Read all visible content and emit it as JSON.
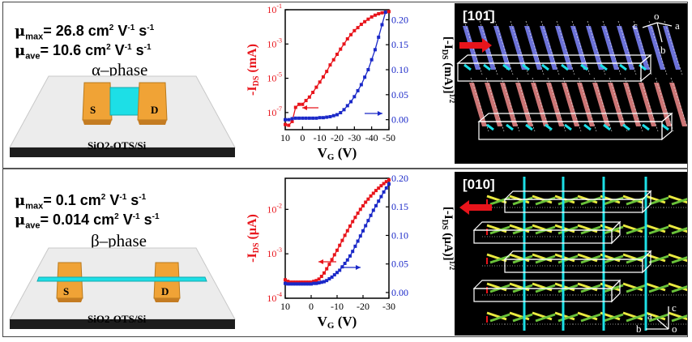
{
  "panels": [
    {
      "id": "alpha",
      "mobility_max": {
        "prefix": "μ",
        "sub": "max",
        "value": "= 26.8 cm",
        "exp": "2",
        "unit": " V",
        "unit_exp": "-1",
        "unit2": " s",
        "unit2_exp": "-1"
      },
      "mobility_ave": {
        "prefix": "μ",
        "sub": "ave",
        "value": "= 10.6 cm",
        "exp": "2",
        "unit": " V",
        "unit_exp": "-1",
        "unit2": " s",
        "unit2_exp": "-1"
      },
      "phase": "α–phase",
      "source": "S",
      "drain": "D",
      "substrate": "SiO2-OTS/Si",
      "direction": "[101̄]",
      "axes": {
        "c": "c",
        "o": "o",
        "a": "a",
        "b": "b"
      },
      "chart_data": {
        "type": "line",
        "xlabel": "VG (V)",
        "ylabel_left": "-IDS (mA)",
        "ylabel_right": "[-IDS (mA)]1/2",
        "x_ticks": [
          "10",
          "0",
          "-10",
          "-20",
          "-30",
          "-40",
          "-50"
        ],
        "xlim": [
          10,
          -50
        ],
        "yleft_scale": "log",
        "yleft_lim": [
          1e-08,
          0.1
        ],
        "yleft_ticks": [
          {
            "base": "10",
            "exp": "-7",
            "v": 1e-07
          },
          {
            "base": "10",
            "exp": "-5",
            "v": 1e-05
          },
          {
            "base": "10",
            "exp": "-3",
            "v": 0.001
          },
          {
            "base": "10",
            "exp": "-1",
            "v": 0.1
          }
        ],
        "yright_lim": [
          -0.02,
          0.22
        ],
        "yright_ticks": [
          "0.00",
          "0.05",
          "0.10",
          "0.15",
          "0.20"
        ],
        "series": [
          {
            "name": "-IDS (log)",
            "axis": "left",
            "color": "#e8141b",
            "x": [
              10,
              8,
              6,
              4,
              2,
              0,
              -2,
              -4,
              -6,
              -8,
              -10,
              -12,
              -14,
              -16,
              -18,
              -20,
              -22,
              -24,
              -26,
              -28,
              -30,
              -32,
              -34,
              -36,
              -38,
              -40,
              -42,
              -44,
              -46,
              -48,
              -50
            ],
            "y": [
              2e-08,
              1.8e-08,
              3e-08,
              2e-07,
              3e-07,
              3e-07,
              5e-07,
              8e-07,
              1.5e-06,
              3e-06,
              6e-06,
              1.2e-05,
              2.5e-05,
              6e-05,
              0.00012,
              0.00025,
              0.0005,
              0.001,
              0.002,
              0.0035,
              0.006,
              0.009,
              0.014,
              0.02,
              0.028,
              0.038,
              0.048,
              0.058,
              0.066,
              0.072,
              0.078
            ]
          },
          {
            "name": "sqrt(-IDS)",
            "axis": "right",
            "color": "#1a28c8",
            "x": [
              10,
              8,
              6,
              4,
              2,
              0,
              -2,
              -4,
              -6,
              -8,
              -10,
              -12,
              -14,
              -16,
              -18,
              -20,
              -22,
              -24,
              -26,
              -28,
              -30,
              -32,
              -34,
              -36,
              -38,
              -40,
              -42,
              -44,
              -46,
              -48
            ],
            "y": [
              0.0,
              0.0,
              0.002,
              0.003,
              0.003,
              0.003,
              0.003,
              0.003,
              0.003,
              0.003,
              0.004,
              0.004,
              0.005,
              0.006,
              0.008,
              0.01,
              0.014,
              0.02,
              0.028,
              0.036,
              0.046,
              0.058,
              0.07,
              0.085,
              0.1,
              0.12,
              0.14,
              0.165,
              0.19,
              0.215
            ]
          }
        ],
        "annotations": [
          "arrow-left pointing to left axis",
          "arrow-right pointing to right axis"
        ]
      }
    },
    {
      "id": "beta",
      "mobility_max": {
        "prefix": "μ",
        "sub": "max",
        "value": "= 0.1 cm",
        "exp": "2",
        "unit": " V",
        "unit_exp": "-1",
        "unit2": " s",
        "unit2_exp": "-1"
      },
      "mobility_ave": {
        "prefix": "μ",
        "sub": "ave",
        "value": "= 0.014 cm",
        "exp": "2",
        "unit": " V",
        "unit_exp": "-1",
        "unit2": " s",
        "unit2_exp": "-1"
      },
      "phase": "β–phase",
      "source": "S",
      "drain": "D",
      "substrate": "SiO2-OTS/Si",
      "direction": "[010]",
      "axes": {
        "c": "c",
        "o": "o",
        "a": "a",
        "b": "b"
      },
      "chart_data": {
        "type": "line",
        "xlabel": "VG (V)",
        "ylabel_left": "-IDS (μA)",
        "ylabel_right": "[-IDS (μA)]1/2",
        "x_ticks": [
          "10",
          "0",
          "-10",
          "-20",
          "-30"
        ],
        "xlim": [
          10,
          -30
        ],
        "yleft_scale": "log",
        "yleft_lim": [
          0.0001,
          0.05
        ],
        "yleft_ticks": [
          {
            "base": "10",
            "exp": "-4",
            "v": 0.0001
          },
          {
            "base": "10",
            "exp": "-3",
            "v": 0.001
          },
          {
            "base": "10",
            "exp": "-2",
            "v": 0.01
          }
        ],
        "yright_lim": [
          -0.01,
          0.2
        ],
        "yright_ticks": [
          "0.00",
          "0.05",
          "0.10",
          "0.15",
          "0.20"
        ],
        "series": [
          {
            "name": "-IDS (log)",
            "axis": "left",
            "color": "#e8141b",
            "x": [
              10,
              9,
              8,
              7,
              6,
              5,
              4,
              3,
              2,
              1,
              0,
              -1,
              -2,
              -3,
              -4,
              -5,
              -6,
              -7,
              -8,
              -9,
              -10,
              -11,
              -12,
              -13,
              -14,
              -15,
              -16,
              -17,
              -18,
              -19,
              -20,
              -21,
              -22,
              -23,
              -24,
              -25,
              -26,
              -27,
              -28,
              -29,
              -30
            ],
            "y": [
              0.00026,
              0.00024,
              0.00023,
              0.00023,
              0.00023,
              0.00023,
              0.00023,
              0.00023,
              0.00023,
              0.00023,
              0.00023,
              0.00024,
              0.00025,
              0.00027,
              0.00031,
              0.00037,
              0.00046,
              0.00058,
              0.00074,
              0.00095,
              0.0012,
              0.00155,
              0.002,
              0.0026,
              0.0033,
              0.0042,
              0.0053,
              0.0066,
              0.0082,
              0.01,
              0.012,
              0.0145,
              0.017,
              0.02,
              0.023,
              0.0265,
              0.03,
              0.034,
              0.038,
              0.042,
              0.046
            ]
          },
          {
            "name": "sqrt(-IDS)",
            "axis": "right",
            "color": "#1a28c8",
            "x": [
              10,
              9,
              8,
              7,
              6,
              5,
              4,
              3,
              2,
              1,
              0,
              -1,
              -2,
              -3,
              -4,
              -5,
              -6,
              -7,
              -8,
              -9,
              -10,
              -11,
              -12,
              -13,
              -14,
              -15,
              -16,
              -17,
              -18,
              -19,
              -20,
              -21,
              -22,
              -23,
              -24,
              -25,
              -26,
              -27,
              -28,
              -29,
              -30
            ],
            "y": [
              0.016,
              0.015,
              0.015,
              0.015,
              0.015,
              0.015,
              0.015,
              0.015,
              0.015,
              0.015,
              0.015,
              0.016,
              0.016,
              0.017,
              0.018,
              0.019,
              0.021,
              0.024,
              0.027,
              0.031,
              0.035,
              0.039,
              0.045,
              0.051,
              0.057,
              0.064,
              0.072,
              0.081,
              0.09,
              0.099,
              0.108,
              0.117,
              0.126,
              0.135,
              0.144,
              0.152,
              0.16,
              0.168,
              0.176,
              0.183,
              0.19
            ]
          }
        ],
        "annotations": [
          "arrow-left pointing to left axis",
          "arrow-right pointing to right axis"
        ]
      }
    }
  ],
  "colors": {
    "red": "#e8141b",
    "blue": "#1a28c8",
    "gold": "#f0a336",
    "cyan": "#1ddfe6",
    "substrate": "#e6e6e6"
  }
}
